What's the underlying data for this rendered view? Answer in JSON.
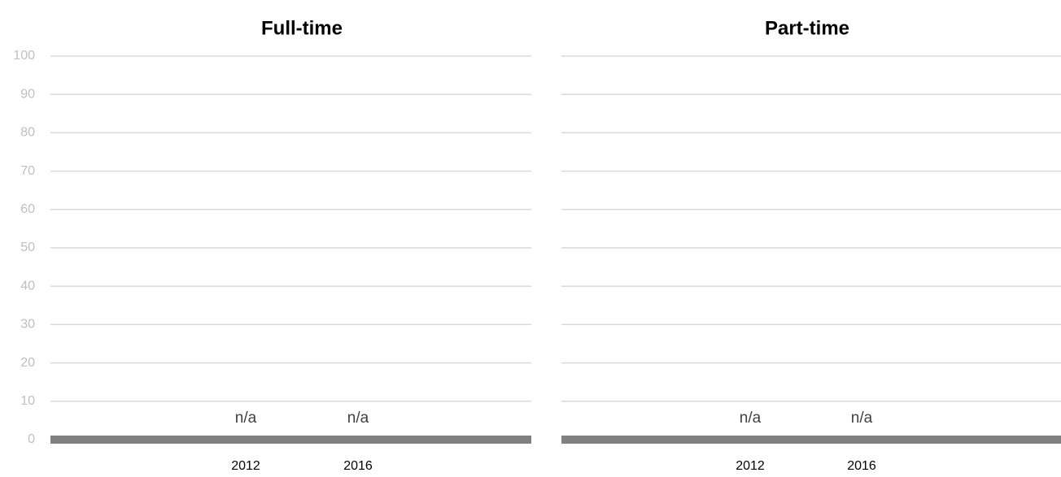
{
  "chart_data": [
    {
      "type": "bar",
      "title": "Full-time",
      "categories": [
        "2012",
        "2016"
      ],
      "values": [
        null,
        null
      ],
      "data_labels": [
        "n/a",
        "n/a"
      ],
      "ylim": [
        0,
        100
      ],
      "yticks": [
        0,
        10,
        20,
        30,
        40,
        50,
        60,
        70,
        80,
        90,
        100
      ],
      "grid": true,
      "colors": {
        "grid": "#d9d9d9",
        "axis": "#808080",
        "tick_label": "#bfbfbf"
      }
    },
    {
      "type": "bar",
      "title": "Part-time",
      "categories": [
        "2012",
        "2016"
      ],
      "values": [
        null,
        null
      ],
      "data_labels": [
        "n/a",
        "n/a"
      ],
      "ylim": [
        0,
        100
      ],
      "yticks": [
        0,
        10,
        20,
        30,
        40,
        50,
        60,
        70,
        80,
        90,
        100
      ],
      "grid": true,
      "colors": {
        "grid": "#d9d9d9",
        "axis": "#808080",
        "tick_label": "#bfbfbf"
      }
    }
  ]
}
